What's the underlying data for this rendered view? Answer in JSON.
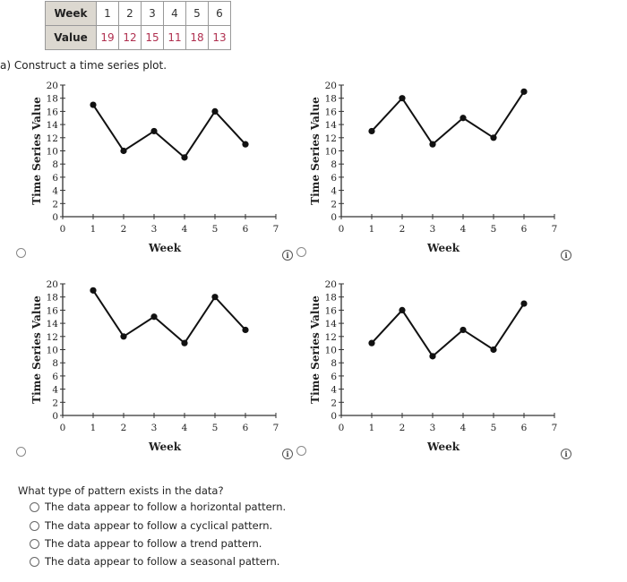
{
  "table": {
    "row_headers": [
      "Week",
      "Value"
    ],
    "weeks": [
      "1",
      "2",
      "3",
      "4",
      "5",
      "6"
    ],
    "values": [
      "19",
      "12",
      "15",
      "11",
      "18",
      "13"
    ]
  },
  "part_a": {
    "prompt": "a)  Construct a time series plot."
  },
  "chart_common": {
    "xlabel": "Week",
    "ylabel": "Time Series Value",
    "x_ticks": [
      "0",
      "1",
      "2",
      "3",
      "4",
      "5",
      "6",
      "7"
    ],
    "y_ticks": [
      "0",
      "2",
      "4",
      "6",
      "8",
      "10",
      "12",
      "14",
      "16",
      "18",
      "20"
    ],
    "info_icon": "i"
  },
  "chart_data": [
    {
      "type": "line",
      "title": "",
      "xlabel": "Week",
      "ylabel": "Time Series Value",
      "x": [
        1,
        2,
        3,
        4,
        5,
        6
      ],
      "values": [
        17,
        10,
        13,
        9,
        16,
        11
      ],
      "xlim": [
        0,
        7
      ],
      "ylim": [
        0,
        20
      ],
      "grid": false,
      "position": "top-left"
    },
    {
      "type": "line",
      "title": "",
      "xlabel": "Week",
      "ylabel": "Time Series Value",
      "x": [
        1,
        2,
        3,
        4,
        5,
        6
      ],
      "values": [
        13,
        18,
        11,
        15,
        12,
        19
      ],
      "xlim": [
        0,
        7
      ],
      "ylim": [
        0,
        20
      ],
      "grid": false,
      "position": "top-right"
    },
    {
      "type": "line",
      "title": "",
      "xlabel": "Week",
      "ylabel": "Time Series Value",
      "x": [
        1,
        2,
        3,
        4,
        5,
        6
      ],
      "values": [
        19,
        12,
        15,
        11,
        18,
        13
      ],
      "xlim": [
        0,
        7
      ],
      "ylim": [
        0,
        20
      ],
      "grid": false,
      "position": "bottom-left"
    },
    {
      "type": "line",
      "title": "",
      "xlabel": "Week",
      "ylabel": "Time Series Value",
      "x": [
        1,
        2,
        3,
        4,
        5,
        6
      ],
      "values": [
        11,
        16,
        9,
        13,
        10,
        17
      ],
      "xlim": [
        0,
        7
      ],
      "ylim": [
        0,
        20
      ],
      "grid": false,
      "position": "bottom-right"
    }
  ],
  "question": {
    "text": "What type of pattern exists in the data?",
    "options": [
      "The data appear to follow a horizontal pattern.",
      "The data appear to follow a cyclical pattern.",
      "The data appear to follow a trend pattern.",
      "The data appear to follow a seasonal pattern."
    ]
  }
}
